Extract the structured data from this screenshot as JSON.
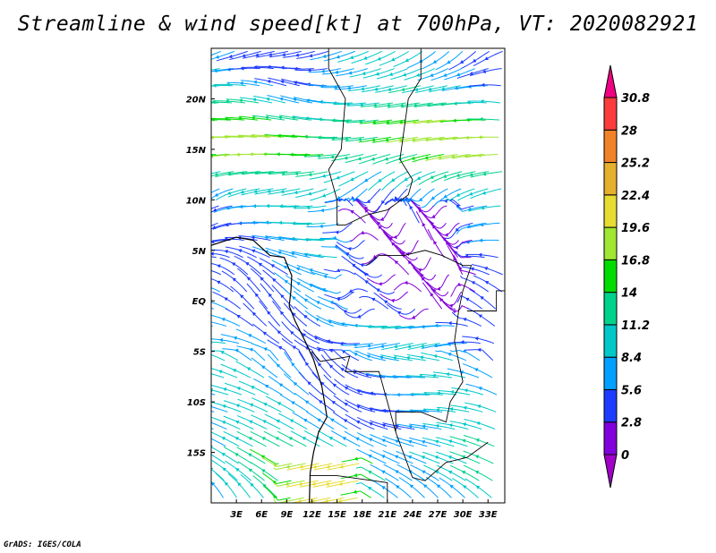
{
  "title": "Streamline & wind speed[kt] at 700hPa, VT: 2020082921",
  "footer": "GrADS: IGES/COLA",
  "chart_data": {
    "type": "streamline",
    "variable": "wind speed",
    "units": "kt",
    "level": "700hPa",
    "valid_time": "2020082921",
    "lon_range": [
      0,
      35
    ],
    "lat_range": [
      -20,
      25
    ],
    "x_ticks": [
      "3E",
      "6E",
      "9E",
      "12E",
      "15E",
      "18E",
      "21E",
      "24E",
      "27E",
      "30E",
      "33E"
    ],
    "x_tick_values": [
      3,
      6,
      9,
      12,
      15,
      18,
      21,
      24,
      27,
      30,
      33
    ],
    "y_ticks": [
      "20N",
      "15N",
      "10N",
      "5N",
      "EQ",
      "5S",
      "10S",
      "15S"
    ],
    "y_tick_values": [
      20,
      15,
      10,
      5,
      0,
      -5,
      -10,
      -15
    ],
    "colorbar": {
      "labels": [
        "0",
        "2.8",
        "5.6",
        "8.4",
        "11.2",
        "14",
        "16.8",
        "19.6",
        "22.4",
        "25.2",
        "28",
        "30.8"
      ],
      "colors": [
        "#a000c8",
        "#8200dc",
        "#1e3cff",
        "#00a0ff",
        "#00c8c8",
        "#00d28c",
        "#00dc00",
        "#a0e632",
        "#e6dc32",
        "#e6af2d",
        "#f08228",
        "#fa3c3c",
        "#f00082"
      ]
    }
  }
}
